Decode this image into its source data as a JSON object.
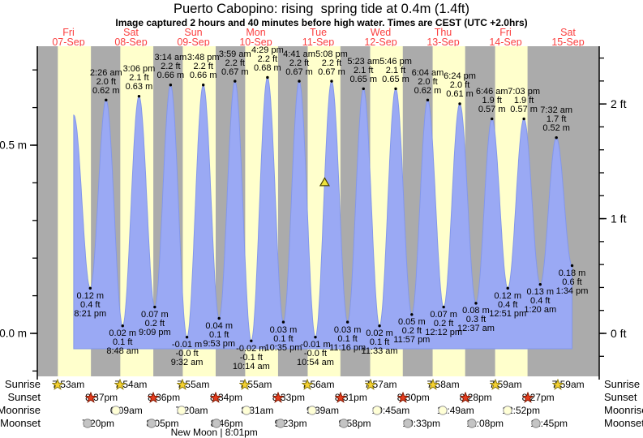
{
  "title": "Puerto Cabopino: rising  spring tide at 0.4m (1.4ft)",
  "subtitle": "Image captured 2 hours and 40 minutes before high water. Times are CEST (UTC +2.0hrs)",
  "colors": {
    "night_band": "#ababab",
    "daylight_band": "#ffffcc",
    "tide_fill": "#9aa9f4",
    "tide_stroke": "#8397ea",
    "day_label_red": "#fb4040",
    "axis_black": "#000000",
    "marker_yellow": "#efe33b",
    "sunrise_star_fill": "#f5d030",
    "sunrise_star_stroke": "#8a7a10",
    "sunset_star_fill": "#e63c1e",
    "sunset_star_stroke": "#801800",
    "moonrise_fill": "#ffffd6",
    "moonrise_stroke": "#999999",
    "moonset_fill": "#c4c4c4",
    "moonset_stroke": "#888888"
  },
  "days": [
    {
      "weekday": "Fri",
      "date": "07-Sep"
    },
    {
      "weekday": "Sat",
      "date": "08-Sep"
    },
    {
      "weekday": "Sun",
      "date": "09-Sep"
    },
    {
      "weekday": "Mon",
      "date": "10-Sep"
    },
    {
      "weekday": "Tue",
      "date": "11-Sep"
    },
    {
      "weekday": "Wed",
      "date": "12-Sep"
    },
    {
      "weekday": "Thu",
      "date": "13-Sep"
    },
    {
      "weekday": "Fri",
      "date": "14-Sep"
    },
    {
      "weekday": "Sat",
      "date": "15-Sep"
    }
  ],
  "chart_data": {
    "type": "area",
    "title": "Puerto Cabopino tide curve, 07-Sep to 15-Sep",
    "y_axis_left": {
      "unit": "m",
      "labels": [
        {
          "value": 0.5,
          "text": "0.5 m"
        },
        {
          "value": 0.0,
          "text": "0.0 m"
        }
      ],
      "minor_tick_step": 0.1,
      "range_m": [
        -0.119,
        0.763
      ]
    },
    "y_axis_right": {
      "unit": "ft",
      "labels": [
        {
          "value_ft": 2,
          "text": "2 ft"
        },
        {
          "value_ft": 1,
          "text": "1 ft"
        },
        {
          "value_ft": 0,
          "text": "0 ft"
        }
      ],
      "minor_tick_step_ft": 0.2,
      "m_per_ft": 0.3048
    },
    "curve_start": {
      "day": 0,
      "time": "2:00 pm",
      "height_m": 0.58
    },
    "current_marker": {
      "day": 4,
      "time": "2:28 pm",
      "height_m": 0.4
    },
    "events": [
      {
        "day": 0,
        "type": "low",
        "time": "8:21 pm",
        "ft": "0.4 ft",
        "m": "0.12 m",
        "height_m": 0.12
      },
      {
        "day": 1,
        "type": "high",
        "time": "2:26 am",
        "ft": "2.0 ft",
        "m": "0.62 m",
        "height_m": 0.62
      },
      {
        "day": 1,
        "type": "low",
        "time": "8:48 am",
        "ft": "0.1 ft",
        "m": "0.02 m",
        "height_m": 0.02
      },
      {
        "day": 1,
        "type": "high",
        "time": "3:06 pm",
        "ft": "2.1 ft",
        "m": "0.63 m",
        "height_m": 0.63
      },
      {
        "day": 1,
        "type": "low",
        "time": "9:09 pm",
        "ft": "0.2 ft",
        "m": "0.07 m",
        "height_m": 0.07
      },
      {
        "day": 2,
        "type": "high",
        "time": "3:14 am",
        "ft": "2.2 ft",
        "m": "0.66 m",
        "height_m": 0.66
      },
      {
        "day": 2,
        "type": "low",
        "time": "9:32 am",
        "ft": "-0.0 ft",
        "m": "-0.01 m",
        "height_m": -0.01
      },
      {
        "day": 2,
        "type": "high",
        "time": "3:48 pm",
        "ft": "2.2 ft",
        "m": "0.66 m",
        "height_m": 0.66
      },
      {
        "day": 2,
        "type": "low",
        "time": "9:53 pm",
        "ft": "0.1 ft",
        "m": "0.04 m",
        "height_m": 0.04
      },
      {
        "day": 3,
        "type": "high",
        "time": "3:59 am",
        "ft": "2.2 ft",
        "m": "0.67 m",
        "height_m": 0.67
      },
      {
        "day": 3,
        "type": "low",
        "time": "10:14 am",
        "ft": "-0.1 ft",
        "m": "-0.02 m",
        "height_m": -0.02
      },
      {
        "day": 3,
        "type": "high",
        "time": "4:29 pm",
        "ft": "2.2 ft",
        "m": "0.68 m",
        "height_m": 0.68
      },
      {
        "day": 3,
        "type": "low",
        "time": "10:35 pm",
        "ft": "0.1 ft",
        "m": "0.03 m",
        "height_m": 0.03
      },
      {
        "day": 4,
        "type": "high",
        "time": "4:41 am",
        "ft": "2.2 ft",
        "m": "0.67 m",
        "height_m": 0.67
      },
      {
        "day": 4,
        "type": "low",
        "time": "10:54 am",
        "ft": "-0.0 ft",
        "m": "-0.01 m",
        "height_m": -0.01
      },
      {
        "day": 4,
        "type": "high",
        "time": "5:08 pm",
        "ft": "2.2 ft",
        "m": "0.67 m",
        "height_m": 0.67
      },
      {
        "day": 4,
        "type": "low",
        "time": "11:16 pm",
        "ft": "0.1 ft",
        "m": "0.03 m",
        "height_m": 0.03
      },
      {
        "day": 5,
        "type": "high",
        "time": "5:23 am",
        "ft": "2.1 ft",
        "m": "0.65 m",
        "height_m": 0.65
      },
      {
        "day": 5,
        "type": "low",
        "time": "11:33 am",
        "ft": "0.1 ft",
        "m": "0.02 m",
        "height_m": 0.02
      },
      {
        "day": 5,
        "type": "high",
        "time": "5:46 pm",
        "ft": "2.1 ft",
        "m": "0.65 m",
        "height_m": 0.65
      },
      {
        "day": 5,
        "type": "low",
        "time": "11:57 pm",
        "ft": "0.2 ft",
        "m": "0.05 m",
        "height_m": 0.05
      },
      {
        "day": 6,
        "type": "high",
        "time": "6:04 am",
        "ft": "2.0 ft",
        "m": "0.62 m",
        "height_m": 0.62
      },
      {
        "day": 6,
        "type": "low",
        "time": "12:12 pm",
        "ft": "0.2 ft",
        "m": "0.07 m",
        "height_m": 0.07
      },
      {
        "day": 6,
        "type": "high",
        "time": "6:24 pm",
        "ft": "2.0 ft",
        "m": "0.61 m",
        "height_m": 0.61
      },
      {
        "day": 7,
        "type": "low",
        "time": "12:37 am",
        "ft": "0.3 ft",
        "m": "0.08 m",
        "height_m": 0.08
      },
      {
        "day": 7,
        "type": "high",
        "time": "6:46 am",
        "ft": "1.9 ft",
        "m": "0.57 m",
        "height_m": 0.57
      },
      {
        "day": 7,
        "type": "low",
        "time": "12:51 pm",
        "ft": "0.4 ft",
        "m": "0.12 m",
        "height_m": 0.12
      },
      {
        "day": 7,
        "type": "high",
        "time": "7:03 pm",
        "ft": "1.9 ft",
        "m": "0.57 m",
        "height_m": 0.57
      },
      {
        "day": 8,
        "type": "low",
        "time": "1:20 am",
        "ft": "0.4 ft",
        "m": "0.13 m",
        "height_m": 0.13
      },
      {
        "day": 8,
        "type": "high",
        "time": "7:32 am",
        "ft": "1.7 ft",
        "m": "0.52 m",
        "height_m": 0.52
      },
      {
        "day": 8,
        "type": "low",
        "time": "1:34 pm",
        "ft": "0.6 ft",
        "m": "0.18 m",
        "height_m": 0.18
      }
    ]
  },
  "astro": {
    "rows": [
      {
        "id": "sunrise",
        "label": "Sunrise",
        "icon": "sunrise-icon",
        "items": [
          {
            "day": 0,
            "time": "7:53am"
          },
          {
            "day": 1,
            "time": "7:54am"
          },
          {
            "day": 2,
            "time": "7:55am"
          },
          {
            "day": 3,
            "time": "7:55am"
          },
          {
            "day": 4,
            "time": "7:56am"
          },
          {
            "day": 5,
            "time": "7:57am"
          },
          {
            "day": 6,
            "time": "7:58am"
          },
          {
            "day": 7,
            "time": "7:59am"
          },
          {
            "day": 8,
            "time": "7:59am"
          }
        ]
      },
      {
        "id": "sunset",
        "label": "Sunset",
        "icon": "sunset-icon",
        "items": [
          {
            "day": 0,
            "time": "8:37pm"
          },
          {
            "day": 1,
            "time": "8:36pm"
          },
          {
            "day": 2,
            "time": "8:34pm"
          },
          {
            "day": 3,
            "time": "8:33pm"
          },
          {
            "day": 4,
            "time": "8:31pm"
          },
          {
            "day": 5,
            "time": "8:30pm"
          },
          {
            "day": 6,
            "time": "8:28pm"
          },
          {
            "day": 7,
            "time": "8:27pm"
          }
        ]
      },
      {
        "id": "moonrise",
        "label": "Moonrise",
        "icon": "moonrise-icon",
        "items": [
          {
            "day": 1,
            "time": "6:09am"
          },
          {
            "day": 2,
            "time": "7:20am"
          },
          {
            "day": 3,
            "time": "8:31am"
          },
          {
            "day": 4,
            "time": "9:39am"
          },
          {
            "day": 5,
            "time": "10:45am"
          },
          {
            "day": 6,
            "time": "11:49am"
          },
          {
            "day": 7,
            "time": "12:52pm"
          }
        ]
      },
      {
        "id": "moonset",
        "label": "Moonset",
        "icon": "moonset-icon",
        "items": [
          {
            "day": 0,
            "time": "7:20pm"
          },
          {
            "day": 1,
            "time": "8:05pm"
          },
          {
            "day": 2,
            "time": "8:46pm"
          },
          {
            "day": 3,
            "time": "9:23pm"
          },
          {
            "day": 4,
            "time": "9:58pm"
          },
          {
            "day": 5,
            "time": "10:33pm"
          },
          {
            "day": 6,
            "time": "11:08pm"
          },
          {
            "day": 7,
            "time": "11:45pm"
          }
        ]
      }
    ],
    "moon_phase": {
      "text": "New Moon | 8:01pm",
      "day": 2,
      "time": "8:01pm"
    }
  }
}
